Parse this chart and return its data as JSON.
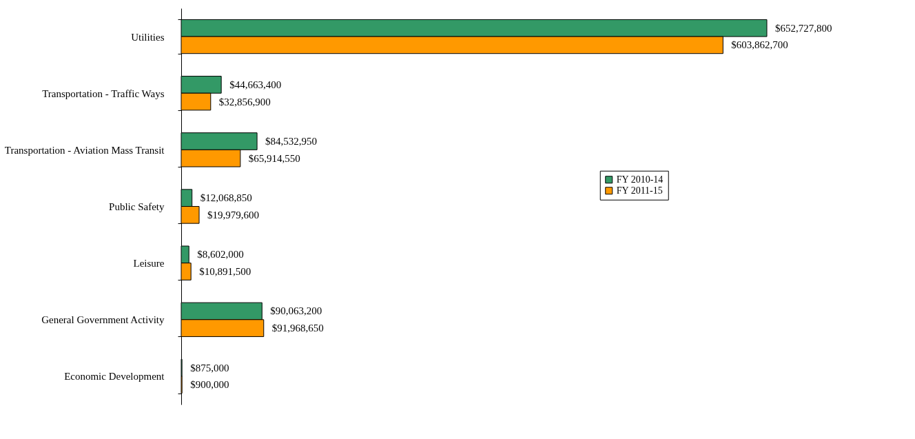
{
  "chart_data": {
    "type": "bar",
    "orientation": "horizontal",
    "categories": [
      "Utilities",
      "Transportation - Traffic Ways",
      "Transportation - Aviation Mass Transit",
      "Public Safety",
      "Leisure",
      "General Government Activity",
      "Economic Development"
    ],
    "series": [
      {
        "name": "FY 2010-14",
        "color": "#339966",
        "values": [
          652727800,
          44663400,
          84532950,
          12068850,
          8602000,
          90063200,
          875000
        ],
        "value_labels": [
          "$652,727,800",
          "$44,663,400",
          "$84,532,950",
          "$12,068,850",
          "$8,602,000",
          "$90,063,200",
          "$875,000"
        ]
      },
      {
        "name": "FY 2011-15",
        "color": "#ff9900",
        "values": [
          603862700,
          32856900,
          65914550,
          19979600,
          10891500,
          91968650,
          900000
        ],
        "value_labels": [
          "$603,862,700",
          "$32,856,900",
          "$65,914,550",
          "$19,979,600",
          "$10,891,500",
          "$91,968,650",
          "$900,000"
        ]
      }
    ],
    "legend": "right",
    "tick_labels": "y"
  }
}
